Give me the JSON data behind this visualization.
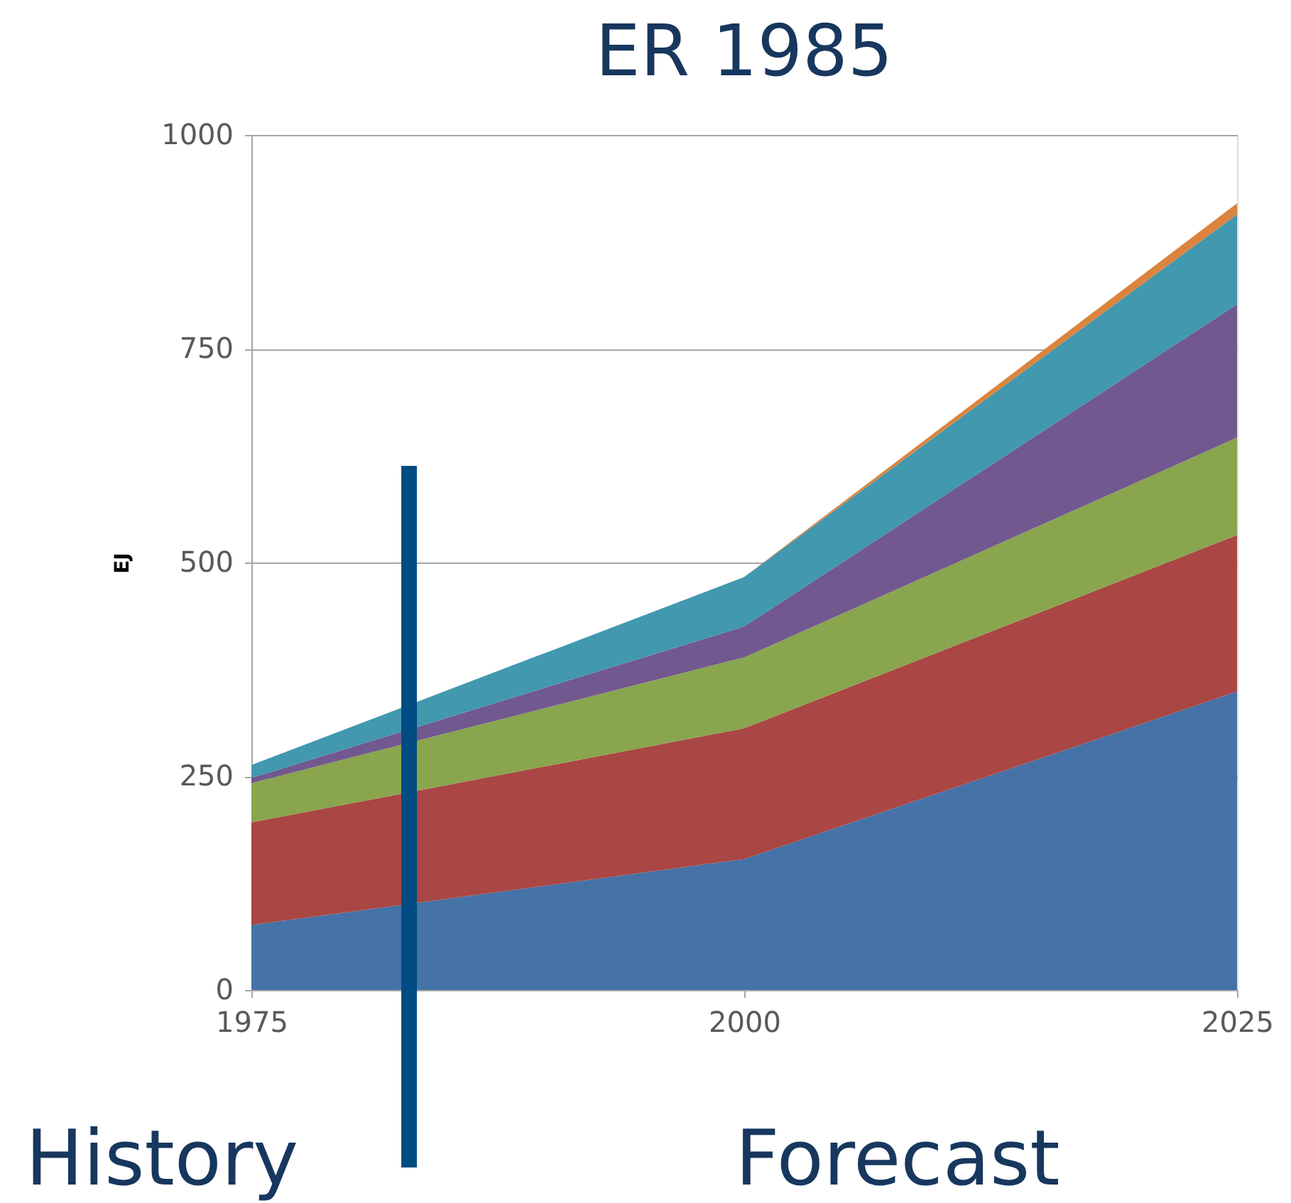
{
  "chart_data": {
    "type": "area",
    "title": "ER 1985",
    "ylabel": "EJ",
    "stacked": true,
    "x": [
      1975,
      2000,
      2025
    ],
    "series": [
      {
        "color": "#4572a7",
        "values": [
          76,
          153,
          349
        ]
      },
      {
        "color": "#aa4643",
        "values": [
          120,
          153,
          183
        ]
      },
      {
        "color": "#89a54e",
        "values": [
          46,
          83,
          114
        ]
      },
      {
        "color": "#71588f",
        "values": [
          6,
          36,
          156
        ]
      },
      {
        "color": "#4198af",
        "values": [
          15,
          58,
          105
        ]
      },
      {
        "color": "#db843d",
        "values": [
          0,
          0,
          13
        ]
      }
    ],
    "xlim": [
      1975,
      2025
    ],
    "xticks": [
      1975,
      2000,
      2025
    ],
    "ylim": [
      0,
      1000
    ],
    "yticks": [
      0,
      250,
      500,
      750,
      1000
    ],
    "grid": "y",
    "legend": false,
    "ref_lines": [
      {
        "axis": "x",
        "value": 1983,
        "color": "#004b82"
      }
    ],
    "annotations": [
      "History",
      "Forecast"
    ]
  }
}
